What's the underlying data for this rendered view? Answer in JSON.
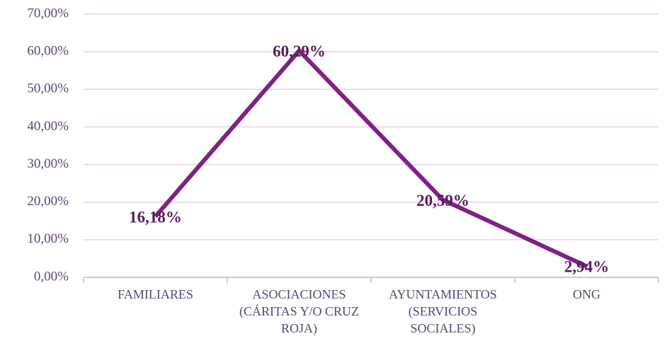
{
  "chart_data": {
    "type": "line",
    "categories": [
      "FAMILIARES",
      "ASOCIACIONES (CÁRITAS Y/O CRUZ ROJA)",
      "AYUNTAMIENTOS (SERVICIOS SOCIALES)",
      "ONG"
    ],
    "values": [
      16.18,
      60.29,
      20.59,
      2.94
    ],
    "value_labels": [
      "16,18%",
      "60,29%",
      "20,59%",
      "2,94%"
    ],
    "color": "#7e2283",
    "ylim": [
      0,
      70
    ],
    "yticks": [
      {
        "value": 0,
        "label": "0,00%"
      },
      {
        "value": 10,
        "label": "10,00%"
      },
      {
        "value": 20,
        "label": "20,00%"
      },
      {
        "value": 30,
        "label": "30,00%"
      },
      {
        "value": 40,
        "label": "40,00%"
      },
      {
        "value": 50,
        "label": "50,00%"
      },
      {
        "value": 60,
        "label": "60,00%"
      },
      {
        "value": 70,
        "label": "70,00%"
      }
    ],
    "grid": true
  }
}
